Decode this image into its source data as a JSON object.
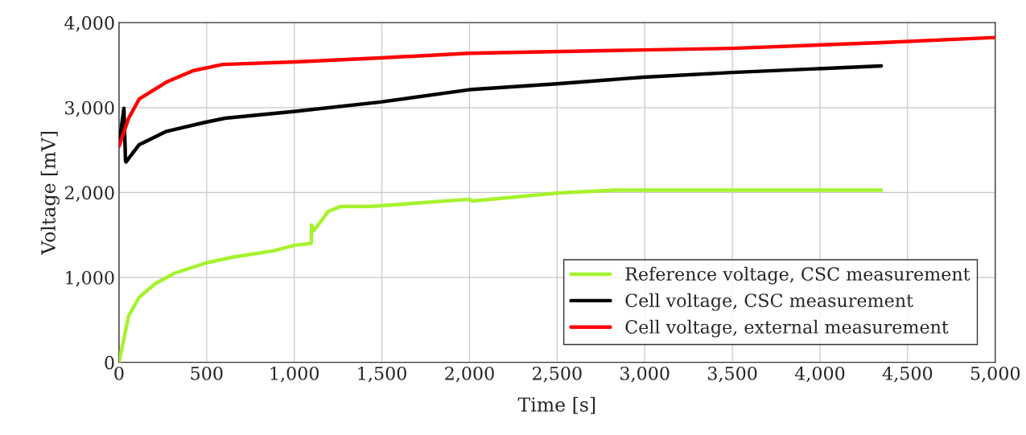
{
  "chart_data": {
    "type": "line",
    "xlabel": "Time [s]",
    "ylabel": "Voltage [mV]",
    "xlim": [
      0,
      5000
    ],
    "ylim": [
      0,
      4000
    ],
    "xticks": [
      0,
      500,
      {
        "value": 1000,
        "label": "1,000"
      },
      {
        "value": 1500,
        "label": "1,500"
      },
      {
        "value": 2000,
        "label": "2,000"
      },
      {
        "value": 2500,
        "label": "2,500"
      },
      {
        "value": 3000,
        "label": "3,000"
      },
      {
        "value": 3500,
        "label": "3,500"
      },
      {
        "value": 4000,
        "label": "4,000"
      },
      {
        "value": 4500,
        "label": "4,500"
      },
      {
        "value": 5000,
        "label": "5,000"
      }
    ],
    "yticks": [
      0,
      {
        "value": 1000,
        "label": "1,000"
      },
      {
        "value": 2000,
        "label": "2,000"
      },
      {
        "value": 3000,
        "label": "3,000"
      },
      {
        "value": 4000,
        "label": "4,000"
      }
    ],
    "grid": true,
    "legend": "bottom right",
    "marker": "none",
    "line_style": "solid",
    "series": [
      {
        "name": "Reference voltage, CSC measurement",
        "color": "#a6f22e",
        "x": [
          0,
          55,
          115,
          207,
          317,
          500,
          652,
          882,
          1005,
          1097,
          1099,
          1111,
          1171,
          1194,
          1263,
          1432,
          1998,
          2015,
          2507,
          2833,
          4350
        ],
        "values": [
          0,
          548,
          766,
          927,
          1050,
          1173,
          1239,
          1314,
          1380,
          1400,
          1617,
          1551,
          1712,
          1778,
          1835,
          1835,
          1920,
          1900,
          1995,
          2028,
          2028
        ]
      },
      {
        "name": "Cell voltage, CSC measurement",
        "color": "#000000",
        "x": [
          0,
          28,
          37,
          40,
          115,
          271,
          500,
          606,
          1005,
          1492,
          1998,
          2497,
          2993,
          3499,
          4350
        ],
        "values": [
          2560,
          2990,
          2375,
          2360,
          2563,
          2720,
          2830,
          2875,
          2955,
          3065,
          3210,
          3280,
          3357,
          3413,
          3490
        ]
      },
      {
        "name": "Cell voltage, external measurement",
        "color": "#ff0000",
        "x": [
          0,
          55,
          115,
          271,
          422,
          592,
          1005,
          1492,
          1998,
          2993,
          3499,
          4350,
          5000
        ],
        "values": [
          2545,
          2875,
          3100,
          3300,
          3433,
          3508,
          3537,
          3584,
          3640,
          3678,
          3697,
          3764,
          3825
        ]
      }
    ]
  }
}
